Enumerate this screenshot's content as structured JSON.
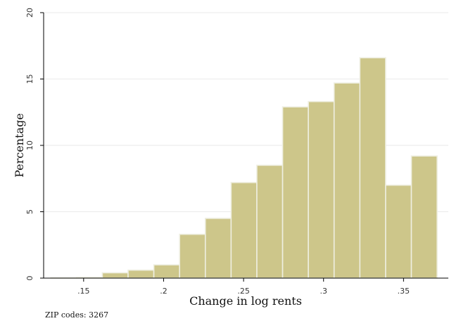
{
  "chart_data": {
    "type": "bar",
    "xlabel": "Change in log rents",
    "ylabel": "Percentage",
    "note": "ZIP codes: 3267",
    "xlim": [
      0.125,
      0.378
    ],
    "ylim": [
      0,
      20
    ],
    "x_ticks": [
      {
        "value": 0.15,
        "label": ".15"
      },
      {
        "value": 0.2,
        "label": ".2"
      },
      {
        "value": 0.25,
        "label": ".25"
      },
      {
        "value": 0.3,
        "label": ".3"
      },
      {
        "value": 0.35,
        "label": ".35"
      }
    ],
    "y_ticks": [
      {
        "value": 0,
        "label": "0"
      },
      {
        "value": 5,
        "label": "5"
      },
      {
        "value": 10,
        "label": "10"
      },
      {
        "value": 15,
        "label": "15"
      },
      {
        "value": 20,
        "label": "20"
      }
    ],
    "grid": true,
    "bin_width": 0.0161,
    "bins": [
      {
        "x0": 0.1295,
        "value": 0.03
      },
      {
        "x0": 0.1456,
        "value": 0.06
      },
      {
        "x0": 0.1617,
        "value": 0.4
      },
      {
        "x0": 0.1778,
        "value": 0.6
      },
      {
        "x0": 0.1939,
        "value": 1.0
      },
      {
        "x0": 0.21,
        "value": 3.3
      },
      {
        "x0": 0.2261,
        "value": 4.5
      },
      {
        "x0": 0.2422,
        "value": 7.2
      },
      {
        "x0": 0.2583,
        "value": 8.5
      },
      {
        "x0": 0.2744,
        "value": 12.9
      },
      {
        "x0": 0.2905,
        "value": 13.3
      },
      {
        "x0": 0.3066,
        "value": 14.7
      },
      {
        "x0": 0.3227,
        "value": 16.6
      },
      {
        "x0": 0.3388,
        "value": 7.0
      },
      {
        "x0": 0.3549,
        "value": 9.2
      }
    ],
    "colors": {
      "bar_fill": "#cdc68a",
      "bar_edge": "#eeeee0",
      "grid": "#eaeaea",
      "axis": "#000000"
    }
  }
}
